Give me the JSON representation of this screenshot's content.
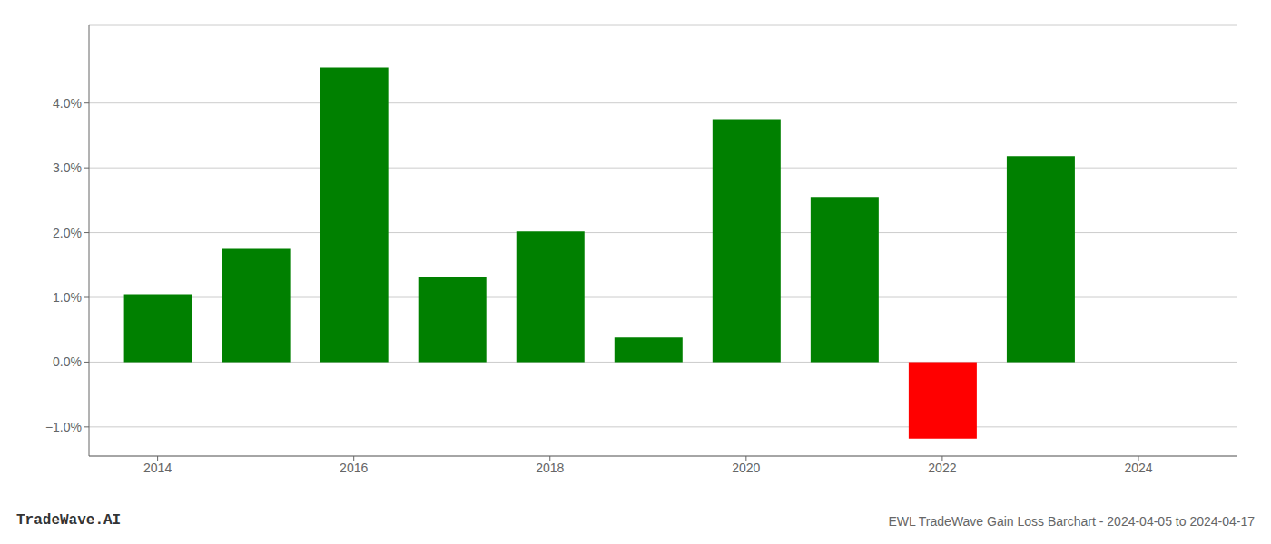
{
  "chart_data": {
    "type": "bar",
    "title": "EWL TradeWave Gain Loss Barchart - 2024-04-05 to 2024-04-17",
    "annotations": [
      "TradeWave.AI"
    ],
    "x": [
      2014,
      2015,
      2016,
      2017,
      2018,
      2019,
      2020,
      2021,
      2022,
      2023
    ],
    "values": [
      0.0105,
      0.0175,
      0.0455,
      0.0132,
      0.0202,
      0.0038,
      0.0375,
      0.0255,
      -0.0118,
      0.0318
    ],
    "colors": [
      "#008000",
      "#008000",
      "#008000",
      "#008000",
      "#008000",
      "#008000",
      "#008000",
      "#008000",
      "#ff0000",
      "#008000"
    ],
    "xlim": [
      2013.3,
      2025.0
    ],
    "xticks": [
      2014,
      2016,
      2018,
      2020,
      2022,
      2024
    ],
    "ylim": [
      -0.0145,
      0.052
    ],
    "yticks": [
      {
        "value": -0.01,
        "label": "−1.0%"
      },
      {
        "value": 0.0,
        "label": "0.0%"
      },
      {
        "value": 0.01,
        "label": "1.0%"
      },
      {
        "value": 0.02,
        "label": "2.0%"
      },
      {
        "value": 0.03,
        "label": "3.0%"
      },
      {
        "value": 0.04,
        "label": "4.0%"
      }
    ],
    "grid": true
  }
}
